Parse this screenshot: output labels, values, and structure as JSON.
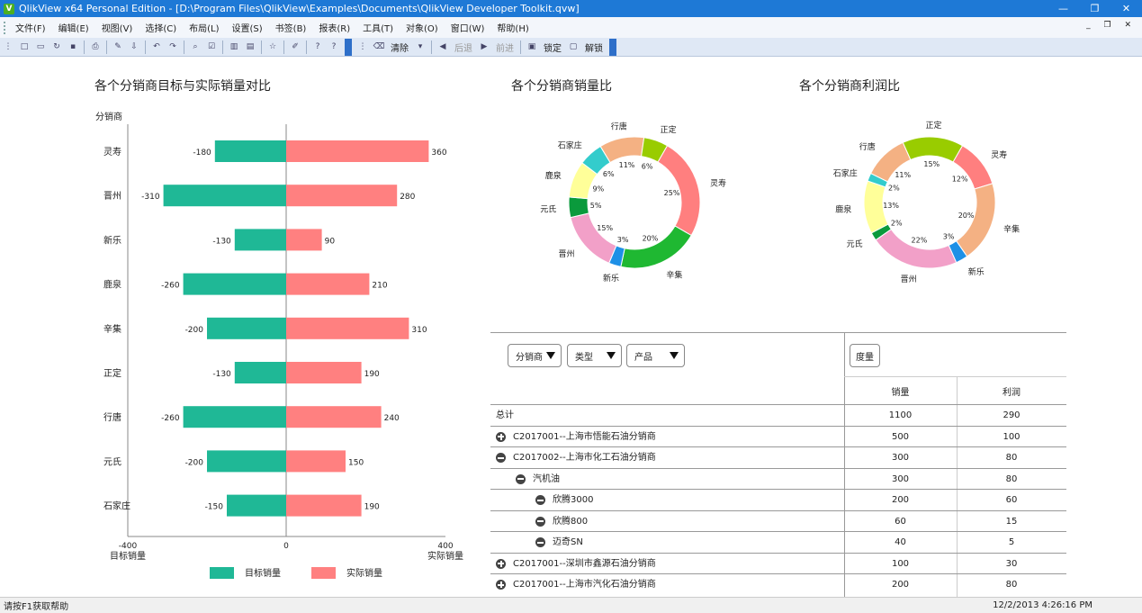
{
  "window": {
    "title": "QlikView x64 Personal Edition - [D:\\Program Files\\QlikView\\Examples\\Documents\\QlikView Developer Toolkit.qvw]",
    "app_icon_letter": "V"
  },
  "menu": [
    "文件(F)",
    "编辑(E)",
    "视图(V)",
    "选择(C)",
    "布局(L)",
    "设置(S)",
    "书签(B)",
    "报表(R)",
    "工具(T)",
    "对象(O)",
    "窗口(W)",
    "帮助(H)"
  ],
  "toolbar": {
    "clear_label": "清除",
    "back_label": "后退",
    "forward_label": "前进",
    "lock_label": "锁定",
    "unlock_label": "解锁"
  },
  "bar_chart": {
    "title": "各个分销商目标与实际销量对比",
    "dimension_label": "分销商",
    "left_axis_label": "目标销量",
    "right_axis_label": "实际销量",
    "legend": [
      "目标销量",
      "实际销量"
    ]
  },
  "chart_data": [
    {
      "type": "bar",
      "orientation": "horizontal-butterfly",
      "title": "各个分销商目标与实际销量对比",
      "categories": [
        "灵寿",
        "晋州",
        "新乐",
        "鹿泉",
        "辛集",
        "正定",
        "行唐",
        "元氏",
        "石家庄"
      ],
      "series": [
        {
          "name": "目标销量",
          "color": "#1fb896",
          "values": [
            -180,
            -310,
            -130,
            -260,
            -200,
            -130,
            -260,
            -200,
            -150
          ]
        },
        {
          "name": "实际销量",
          "color": "#ff8080",
          "values": [
            360,
            280,
            90,
            210,
            310,
            190,
            240,
            150,
            190
          ]
        }
      ],
      "xlim": [
        -400,
        400
      ],
      "xticks": [
        "-400",
        "0",
        "400"
      ],
      "legend_position": "bottom"
    },
    {
      "type": "pie",
      "donut": true,
      "title": "各个分销商销量比",
      "slices": [
        {
          "label": "灵寿",
          "percent": 25,
          "pct_label": "25%",
          "color": "#ff7f7f"
        },
        {
          "label": "辛集",
          "percent": 20,
          "pct_label": "20%",
          "color": "#1fb832"
        },
        {
          "label": "新乐",
          "percent": 3,
          "pct_label": "3%",
          "color": "#1e90e6"
        },
        {
          "label": "晋州",
          "percent": 15,
          "pct_label": "15%",
          "color": "#f2a0c8"
        },
        {
          "label": "元氏",
          "percent": 5,
          "pct_label": "5%",
          "color": "#0a9a3c"
        },
        {
          "label": "鹿泉",
          "percent": 9,
          "pct_label": "9%",
          "color": "#ffff99"
        },
        {
          "label": "石家庄",
          "percent": 6,
          "pct_label": "6%",
          "color": "#33cccc"
        },
        {
          "label": "行唐",
          "percent": 11,
          "pct_label": "11%",
          "color": "#f4b183"
        },
        {
          "label": "正定",
          "percent": 6,
          "pct_label": "6%",
          "color": "#99cc00"
        }
      ]
    },
    {
      "type": "pie",
      "donut": true,
      "title": "各个分销商利润比",
      "slices": [
        {
          "label": "灵寿",
          "percent": 12,
          "pct_label": "12%",
          "color": "#ff7f7f"
        },
        {
          "label": "辛集",
          "percent": 20,
          "pct_label": "20%",
          "color": "#f4b183"
        },
        {
          "label": "新乐",
          "percent": 3,
          "pct_label": "3%",
          "color": "#1e90e6"
        },
        {
          "label": "晋州",
          "percent": 22,
          "pct_label": "22%",
          "color": "#f2a0c8"
        },
        {
          "label": "元氏",
          "percent": 2,
          "pct_label": "2%",
          "color": "#0a9a3c"
        },
        {
          "label": "鹿泉",
          "percent": 13,
          "pct_label": "13%",
          "color": "#ffff99"
        },
        {
          "label": "石家庄",
          "percent": 2,
          "pct_label": "2%",
          "color": "#33cccc"
        },
        {
          "label": "行唐",
          "percent": 11,
          "pct_label": "11%",
          "color": "#f4b183"
        },
        {
          "label": "正定",
          "percent": 15,
          "pct_label": "15%",
          "color": "#99cc00"
        }
      ]
    }
  ],
  "pivot": {
    "dropdowns": [
      "分销商",
      "类型",
      "产品"
    ],
    "measure_label": "度量",
    "columns": [
      "销量",
      "利润"
    ],
    "rows": [
      {
        "label": "总计",
        "indent": 0,
        "icon": "none",
        "sales": "1100",
        "profit": "290"
      },
      {
        "label": "C2017001--上海市悟能石油分销商",
        "indent": 0,
        "icon": "plus",
        "sales": "500",
        "profit": "100"
      },
      {
        "label": "C2017002--上海市化工石油分销商",
        "indent": 0,
        "icon": "minus",
        "sales": "300",
        "profit": "80"
      },
      {
        "label": "汽机油",
        "indent": 1,
        "icon": "minus",
        "sales": "300",
        "profit": "80"
      },
      {
        "label": "欣腾3000",
        "indent": 2,
        "icon": "minus",
        "sales": "200",
        "profit": "60"
      },
      {
        "label": "欣腾800",
        "indent": 2,
        "icon": "minus",
        "sales": "60",
        "profit": "15"
      },
      {
        "label": "迈奇SN",
        "indent": 2,
        "icon": "minus",
        "sales": "40",
        "profit": "5"
      },
      {
        "label": "C2017001--深圳市鑫源石油分销商",
        "indent": 0,
        "icon": "plus",
        "sales": "100",
        "profit": "30"
      },
      {
        "label": "C2017001--上海市汽化石油分销商",
        "indent": 0,
        "icon": "plus",
        "sales": "200",
        "profit": "80"
      }
    ]
  },
  "status": {
    "help_text": "请按F1获取帮助",
    "datetime": "12/2/2013 4:26:16 PM"
  }
}
